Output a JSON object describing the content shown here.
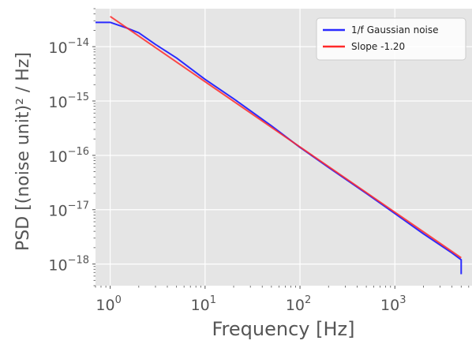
{
  "chart_data": {
    "type": "line",
    "xlabel": "Frequency [Hz]",
    "ylabel": "PSD [(noise unit)² / Hz]",
    "x_scale": "log",
    "y_scale": "log",
    "xlim": [
      0.7,
      6500
    ],
    "ylim": [
      4e-19,
      5e-14
    ],
    "grid": true,
    "legend_position": "top-right",
    "x_ticks": [
      {
        "value": 1,
        "base": "10",
        "exp": "0"
      },
      {
        "value": 10,
        "base": "10",
        "exp": "1"
      },
      {
        "value": 100,
        "base": "10",
        "exp": "2"
      },
      {
        "value": 1000,
        "base": "10",
        "exp": "3"
      }
    ],
    "y_ticks": [
      {
        "value": 1e-14,
        "base": "10",
        "exp": "−14"
      },
      {
        "value": 1e-15,
        "base": "10",
        "exp": "−15"
      },
      {
        "value": 1e-16,
        "base": "10",
        "exp": "−16"
      },
      {
        "value": 1e-17,
        "base": "10",
        "exp": "−17"
      },
      {
        "value": 1e-18,
        "base": "10",
        "exp": "−18"
      }
    ],
    "series": [
      {
        "name": "1/f Gaussian noise",
        "color": "#2a2aff",
        "points": [
          [
            0.7,
            2.8e-14
          ],
          [
            1.0,
            2.8e-14
          ],
          [
            1.5,
            2.2e-14
          ],
          [
            2.0,
            1.8e-14
          ],
          [
            3.0,
            1.1e-14
          ],
          [
            5.0,
            6.2e-15
          ],
          [
            10,
            2.5e-15
          ],
          [
            20,
            1.1e-15
          ],
          [
            50,
            3.5e-16
          ],
          [
            100,
            1.4e-16
          ],
          [
            200,
            6e-17
          ],
          [
            500,
            2e-17
          ],
          [
            1000,
            8.5e-18
          ],
          [
            2000,
            3.6e-18
          ],
          [
            4000,
            1.6e-18
          ],
          [
            5000,
            1.2e-18
          ],
          [
            5000,
            6.5e-19
          ]
        ]
      },
      {
        "name": "Slope -1.20",
        "color": "#ff2a2a",
        "points": [
          [
            1.0,
            3.6e-14
          ],
          [
            5000,
            1.3e-18
          ]
        ]
      }
    ]
  }
}
